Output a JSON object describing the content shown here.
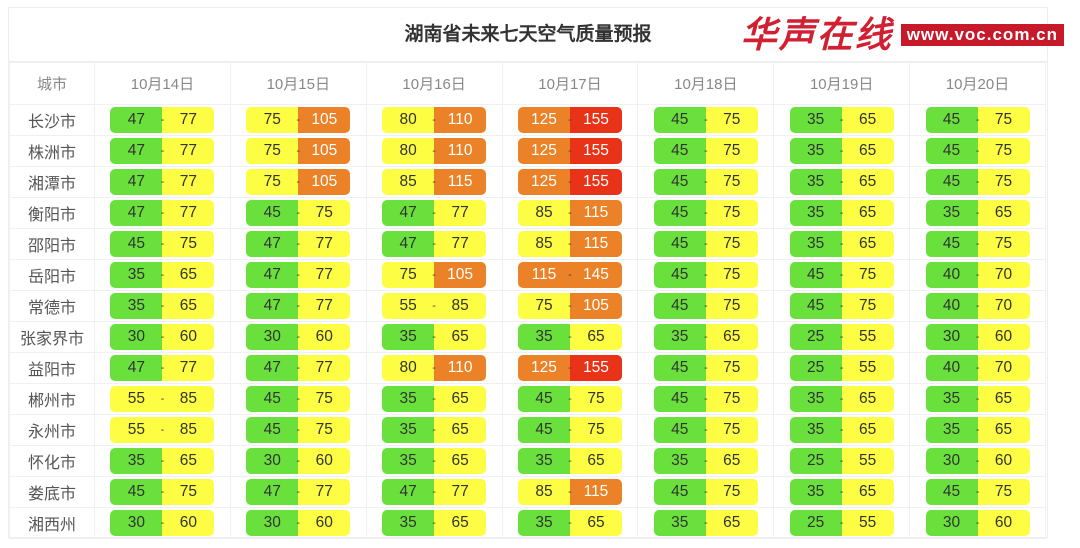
{
  "title": "湖南省未来七天空气质量预报",
  "city_header": "城市",
  "dates": [
    "10月14日",
    "10月15日",
    "10月16日",
    "10月17日",
    "10月18日",
    "10月19日",
    "10月20日"
  ],
  "level_colors": {
    "green": "#6ae03d",
    "yellow": "#fdfd43",
    "orange": "#ec8227",
    "red": "#e83318"
  },
  "separator": "-",
  "rows": [
    {
      "city": "长沙市",
      "ranges": [
        [
          47,
          77
        ],
        [
          75,
          105
        ],
        [
          80,
          110
        ],
        [
          125,
          155
        ],
        [
          45,
          75
        ],
        [
          35,
          65
        ],
        [
          45,
          75
        ]
      ]
    },
    {
      "city": "株洲市",
      "ranges": [
        [
          47,
          77
        ],
        [
          75,
          105
        ],
        [
          80,
          110
        ],
        [
          125,
          155
        ],
        [
          45,
          75
        ],
        [
          35,
          65
        ],
        [
          45,
          75
        ]
      ]
    },
    {
      "city": "湘潭市",
      "ranges": [
        [
          47,
          77
        ],
        [
          75,
          105
        ],
        [
          85,
          115
        ],
        [
          125,
          155
        ],
        [
          45,
          75
        ],
        [
          35,
          65
        ],
        [
          45,
          75
        ]
      ]
    },
    {
      "city": "衡阳市",
      "ranges": [
        [
          47,
          77
        ],
        [
          45,
          75
        ],
        [
          47,
          77
        ],
        [
          85,
          115
        ],
        [
          45,
          75
        ],
        [
          35,
          65
        ],
        [
          35,
          65
        ]
      ]
    },
    {
      "city": "邵阳市",
      "ranges": [
        [
          45,
          75
        ],
        [
          47,
          77
        ],
        [
          47,
          77
        ],
        [
          85,
          115
        ],
        [
          45,
          75
        ],
        [
          35,
          65
        ],
        [
          45,
          75
        ]
      ]
    },
    {
      "city": "岳阳市",
      "ranges": [
        [
          35,
          65
        ],
        [
          47,
          77
        ],
        [
          75,
          105
        ],
        [
          115,
          145
        ],
        [
          45,
          75
        ],
        [
          45,
          75
        ],
        [
          40,
          70
        ]
      ]
    },
    {
      "city": "常德市",
      "ranges": [
        [
          35,
          65
        ],
        [
          47,
          77
        ],
        [
          55,
          85
        ],
        [
          75,
          105
        ],
        [
          45,
          75
        ],
        [
          45,
          75
        ],
        [
          40,
          70
        ]
      ]
    },
    {
      "city": "张家界市",
      "ranges": [
        [
          30,
          60
        ],
        [
          30,
          60
        ],
        [
          35,
          65
        ],
        [
          35,
          65
        ],
        [
          35,
          65
        ],
        [
          25,
          55
        ],
        [
          30,
          60
        ]
      ]
    },
    {
      "city": "益阳市",
      "ranges": [
        [
          47,
          77
        ],
        [
          47,
          77
        ],
        [
          80,
          110
        ],
        [
          125,
          155
        ],
        [
          45,
          75
        ],
        [
          25,
          55
        ],
        [
          40,
          70
        ]
      ]
    },
    {
      "city": "郴州市",
      "ranges": [
        [
          55,
          85
        ],
        [
          45,
          75
        ],
        [
          35,
          65
        ],
        [
          45,
          75
        ],
        [
          45,
          75
        ],
        [
          35,
          65
        ],
        [
          35,
          65
        ]
      ]
    },
    {
      "city": "永州市",
      "ranges": [
        [
          55,
          85
        ],
        [
          45,
          75
        ],
        [
          35,
          65
        ],
        [
          45,
          75
        ],
        [
          45,
          75
        ],
        [
          35,
          65
        ],
        [
          35,
          65
        ]
      ]
    },
    {
      "city": "怀化市",
      "ranges": [
        [
          35,
          65
        ],
        [
          30,
          60
        ],
        [
          35,
          65
        ],
        [
          35,
          65
        ],
        [
          35,
          65
        ],
        [
          25,
          55
        ],
        [
          30,
          60
        ]
      ]
    },
    {
      "city": "娄底市",
      "ranges": [
        [
          45,
          75
        ],
        [
          47,
          77
        ],
        [
          47,
          77
        ],
        [
          85,
          115
        ],
        [
          45,
          75
        ],
        [
          35,
          65
        ],
        [
          45,
          75
        ]
      ]
    },
    {
      "city": "湘西州",
      "ranges": [
        [
          30,
          60
        ],
        [
          30,
          60
        ],
        [
          35,
          65
        ],
        [
          35,
          65
        ],
        [
          35,
          65
        ],
        [
          25,
          55
        ],
        [
          30,
          60
        ]
      ]
    }
  ],
  "watermark": {
    "logo": "华声在线",
    "url": "www.voc.com.cn"
  }
}
